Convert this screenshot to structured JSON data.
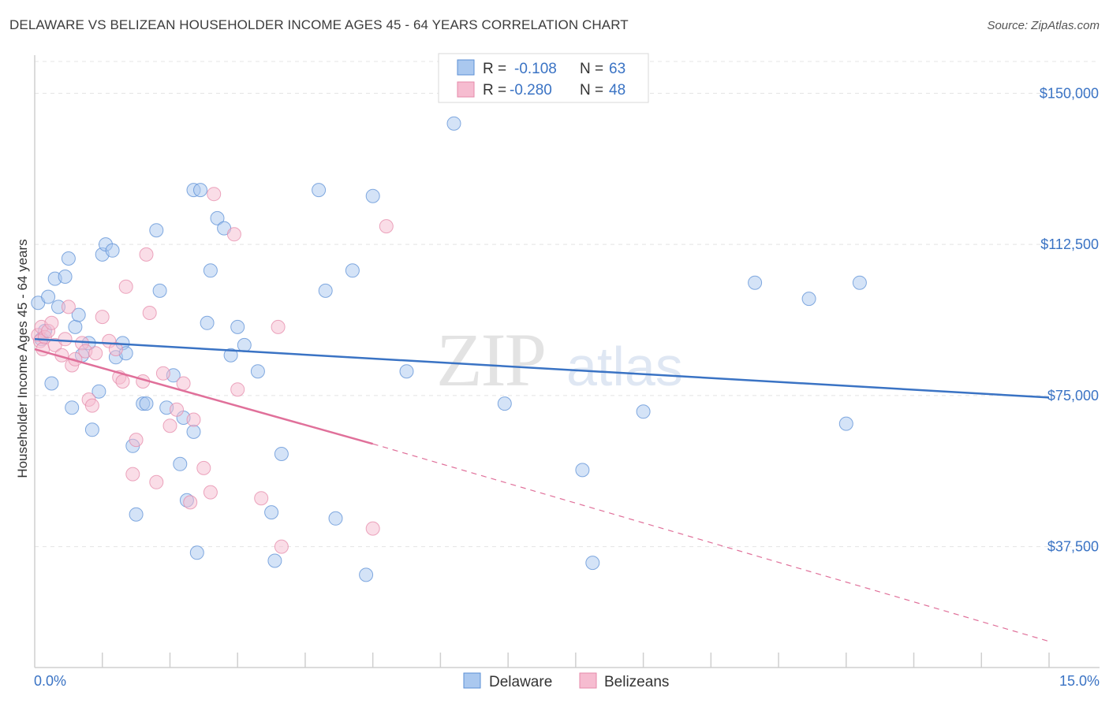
{
  "title": "DELAWARE VS BELIZEAN HOUSEHOLDER INCOME AGES 45 - 64 YEARS CORRELATION CHART",
  "source": "Source: ZipAtlas.com",
  "watermark": {
    "part1": "ZIP",
    "part2": "atlas"
  },
  "colors": {
    "delaware_fill": "#aac8ef",
    "delaware_stroke": "#5b8fd6",
    "delaware_line": "#3a73c4",
    "belize_fill": "#f6bcd0",
    "belize_stroke": "#e58aaa",
    "belize_line": "#e0709a",
    "grid": "#e4e4e4",
    "axis_label": "#3a73c4"
  },
  "legend": {
    "rows": [
      {
        "r_label": "R =",
        "r_value": "-0.108",
        "n_label": "N =",
        "n_value": "63"
      },
      {
        "r_label": "R =",
        "r_value": "-0.280",
        "n_label": "N =",
        "n_value": "48"
      }
    ]
  },
  "bottom_legend": [
    "Delaware",
    "Belizeans"
  ],
  "chart_data": {
    "type": "scatter",
    "title": "DELAWARE VS BELIZEAN HOUSEHOLDER INCOME AGES 45 - 64 YEARS CORRELATION CHART",
    "xlabel": "",
    "ylabel": "Householder Income Ages 45 - 64 years",
    "xlim": [
      0,
      15
    ],
    "ylim": [
      7500,
      157500
    ],
    "x_tick_labels": [
      "0.0%",
      "15.0%"
    ],
    "y_ticks": [
      37500,
      75000,
      112500,
      150000
    ],
    "y_tick_labels": [
      "$37,500",
      "$75,000",
      "$112,500",
      "$150,000"
    ],
    "grid": true,
    "legend_position": "top-center",
    "series": [
      {
        "name": "Delaware",
        "R": -0.108,
        "N": 63,
        "trend": {
          "x": [
            0,
            15
          ],
          "y": [
            89000,
            74500
          ]
        },
        "points": [
          [
            0.05,
            98000
          ],
          [
            0.1,
            89000
          ],
          [
            0.15,
            91000
          ],
          [
            0.2,
            99500
          ],
          [
            0.25,
            78000
          ],
          [
            0.3,
            104000
          ],
          [
            0.35,
            97000
          ],
          [
            0.45,
            104500
          ],
          [
            0.5,
            109000
          ],
          [
            0.55,
            72000
          ],
          [
            0.6,
            92000
          ],
          [
            0.65,
            95000
          ],
          [
            0.7,
            85000
          ],
          [
            0.8,
            88000
          ],
          [
            0.85,
            66500
          ],
          [
            0.95,
            76000
          ],
          [
            1.0,
            110000
          ],
          [
            1.05,
            112500
          ],
          [
            1.15,
            111000
          ],
          [
            1.2,
            84500
          ],
          [
            1.3,
            88000
          ],
          [
            1.35,
            85500
          ],
          [
            1.45,
            62500
          ],
          [
            1.5,
            45500
          ],
          [
            1.6,
            73000
          ],
          [
            1.65,
            73000
          ],
          [
            1.8,
            116000
          ],
          [
            1.85,
            101000
          ],
          [
            1.95,
            72000
          ],
          [
            2.05,
            80000
          ],
          [
            2.15,
            58000
          ],
          [
            2.2,
            69500
          ],
          [
            2.25,
            49000
          ],
          [
            2.35,
            66000
          ],
          [
            2.35,
            126000
          ],
          [
            2.4,
            36000
          ],
          [
            2.45,
            126000
          ],
          [
            2.55,
            93000
          ],
          [
            2.6,
            106000
          ],
          [
            2.7,
            119000
          ],
          [
            2.8,
            116500
          ],
          [
            2.9,
            85000
          ],
          [
            3.0,
            92000
          ],
          [
            3.1,
            87500
          ],
          [
            3.3,
            81000
          ],
          [
            3.5,
            46000
          ],
          [
            3.55,
            34000
          ],
          [
            3.65,
            60500
          ],
          [
            4.2,
            126000
          ],
          [
            4.3,
            101000
          ],
          [
            4.45,
            44500
          ],
          [
            4.7,
            106000
          ],
          [
            4.9,
            30500
          ],
          [
            5.0,
            124500
          ],
          [
            5.5,
            81000
          ],
          [
            6.2,
            142500
          ],
          [
            6.95,
            73000
          ],
          [
            8.1,
            56500
          ],
          [
            8.25,
            33500
          ],
          [
            9.0,
            71000
          ],
          [
            10.65,
            103000
          ],
          [
            11.45,
            99000
          ],
          [
            12.0,
            68000
          ],
          [
            12.2,
            103000
          ]
        ]
      },
      {
        "name": "Belizeans",
        "R": -0.28,
        "N": 48,
        "trend": {
          "x": [
            0,
            5.0
          ],
          "y": [
            86500,
            63000
          ]
        },
        "trend_dashed": {
          "x": [
            5.0,
            15
          ],
          "y": [
            63000,
            14000
          ]
        },
        "points": [
          [
            0.05,
            90000
          ],
          [
            0.08,
            88500
          ],
          [
            0.1,
            92000
          ],
          [
            0.12,
            86500
          ],
          [
            0.15,
            89500
          ],
          [
            0.2,
            91000
          ],
          [
            0.25,
            93000
          ],
          [
            0.3,
            87500
          ],
          [
            0.4,
            85000
          ],
          [
            0.45,
            89000
          ],
          [
            0.5,
            97000
          ],
          [
            0.55,
            82500
          ],
          [
            0.6,
            84000
          ],
          [
            0.7,
            88000
          ],
          [
            0.75,
            86000
          ],
          [
            0.8,
            74000
          ],
          [
            0.85,
            72500
          ],
          [
            0.9,
            85500
          ],
          [
            1.0,
            94500
          ],
          [
            1.1,
            88500
          ],
          [
            1.2,
            86500
          ],
          [
            1.25,
            79500
          ],
          [
            1.3,
            78500
          ],
          [
            1.35,
            102000
          ],
          [
            1.45,
            55500
          ],
          [
            1.5,
            64000
          ],
          [
            1.6,
            78500
          ],
          [
            1.65,
            110000
          ],
          [
            1.7,
            95500
          ],
          [
            1.8,
            53500
          ],
          [
            1.9,
            80500
          ],
          [
            2.0,
            67500
          ],
          [
            2.1,
            71500
          ],
          [
            2.2,
            78000
          ],
          [
            2.3,
            48500
          ],
          [
            2.35,
            69000
          ],
          [
            2.5,
            57000
          ],
          [
            2.6,
            51000
          ],
          [
            2.65,
            125000
          ],
          [
            2.95,
            115000
          ],
          [
            3.0,
            76500
          ],
          [
            3.35,
            49500
          ],
          [
            3.6,
            92000
          ],
          [
            3.65,
            37500
          ],
          [
            5.0,
            42000
          ],
          [
            5.2,
            117000
          ]
        ]
      }
    ]
  }
}
